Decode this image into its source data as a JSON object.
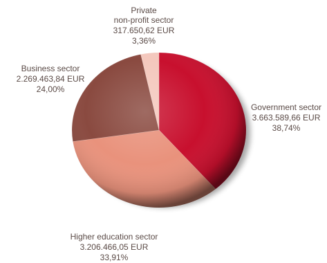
{
  "chart_data": {
    "type": "pie",
    "title": "",
    "unit": "EUR",
    "slices": [
      {
        "name": "Government sector",
        "value_text": "3.663.589,66 EUR",
        "percent_text": "38,74%",
        "value": 3663589.66,
        "percent": 38.74,
        "color": "#c8102e"
      },
      {
        "name": "Higher education sector",
        "value_text": "3.206.466,05 EUR",
        "percent_text": "33,91%",
        "value": 3206466.05,
        "percent": 33.91,
        "color": "#e9927c"
      },
      {
        "name": "Business sector",
        "value_text": "2.269.463,84 EUR",
        "percent_text": "24,00%",
        "value": 2269463.84,
        "percent": 24.0,
        "color": "#8a4a40"
      },
      {
        "name": "Private non-profit sector",
        "name_lines": [
          "Private",
          "non-profit sector"
        ],
        "value_text": "317.650,62 EUR",
        "percent_text": "3,36%",
        "value": 317650.62,
        "percent": 3.36,
        "color": "#f4c8bd"
      }
    ]
  }
}
